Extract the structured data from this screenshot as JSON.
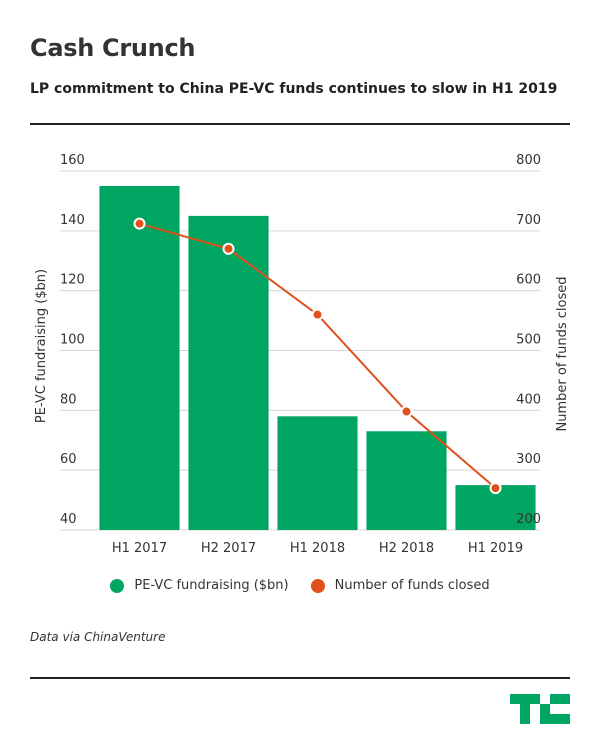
{
  "header": {
    "title": "Cash Crunch",
    "subtitle": "LP commitment to China PE-VC funds continues to slow in H1 2019"
  },
  "footer": {
    "source": "Data via ChinaVenture"
  },
  "chart_data": {
    "type": "bar+line",
    "categories": [
      "H1 2017",
      "H2 2017",
      "H1 2018",
      "H2 2018",
      "H1 2019"
    ],
    "series": [
      {
        "name": "PE-VC fundraising ($bn)",
        "type": "bar",
        "axis": "left",
        "color": "#00a562",
        "values": [
          155,
          145,
          78,
          73,
          55
        ]
      },
      {
        "name": "Number of funds closed",
        "type": "line",
        "axis": "right",
        "color": "#e0501b",
        "values": [
          712,
          670,
          560,
          398,
          270
        ]
      }
    ],
    "y_left": {
      "label": "PE-VC fundraising ($bn)",
      "min": 40,
      "max": 160,
      "ticks": [
        40,
        60,
        80,
        100,
        120,
        140,
        160
      ]
    },
    "y_right": {
      "label": "Number of funds closed",
      "min": 200,
      "max": 800,
      "ticks": [
        200,
        300,
        400,
        500,
        600,
        700,
        800
      ]
    },
    "grid": true,
    "legend_position": "bottom-center"
  }
}
